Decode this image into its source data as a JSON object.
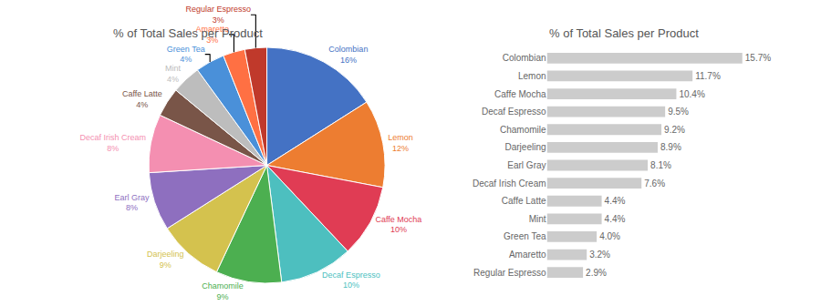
{
  "chart_data": [
    {
      "type": "pie",
      "title": "% of Total Sales per Product",
      "categories": [
        "Colombian",
        "Lemon",
        "Caffe Mocha",
        "Decaf Espresso",
        "Chamomile",
        "Darjeeling",
        "Earl Gray",
        "Decaf Irish Cream",
        "Caffe Latte",
        "Mint",
        "Green Tea",
        "Amaretto",
        "Regular Espresso"
      ],
      "values": [
        16,
        12,
        10,
        10,
        9,
        9,
        8,
        8,
        4,
        4,
        4,
        3,
        3
      ],
      "value_labels": [
        "16%",
        "12%",
        "10%",
        "10%",
        "9%",
        "9%",
        "8%",
        "8%",
        "4%",
        "4%",
        "4%",
        "3%",
        "3%"
      ],
      "colors": [
        "#4472c4",
        "#ed7d31",
        "#e03c54",
        "#4dbfbf",
        "#4caf50",
        "#d4c24e",
        "#8e6fbf",
        "#f48fb1",
        "#795548",
        "#bdbdbd",
        "#4a90d9",
        "#ff7043",
        "#c0392b"
      ],
      "data_labels": true
    },
    {
      "type": "bar",
      "title": "% of Total Sales per Product",
      "orientation": "horizontal",
      "categories": [
        "Regular Espresso",
        "Amaretto",
        "Green Tea",
        "Mint",
        "Caffe Latte",
        "Decaf Irish Cream",
        "Earl Gray",
        "Darjeeling",
        "Chamomile",
        "Decaf Espresso",
        "Caffe Mocha",
        "Lemon",
        "Colombian"
      ],
      "values": [
        2.9,
        3.2,
        4.0,
        4.4,
        4.4,
        7.6,
        8.1,
        8.9,
        9.2,
        9.5,
        10.4,
        11.7,
        15.7
      ],
      "value_labels": [
        "2.9%",
        "3.2%",
        "4.0%",
        "4.4%",
        "4.4%",
        "7.6%",
        "8.1%",
        "8.9%",
        "9.2%",
        "9.5%",
        "10.4%",
        "11.7%",
        "15.7%"
      ],
      "color": "#cccccc",
      "xlim": [
        0,
        20
      ],
      "data_labels": true,
      "tick_labels": "y",
      "grid": false
    }
  ]
}
